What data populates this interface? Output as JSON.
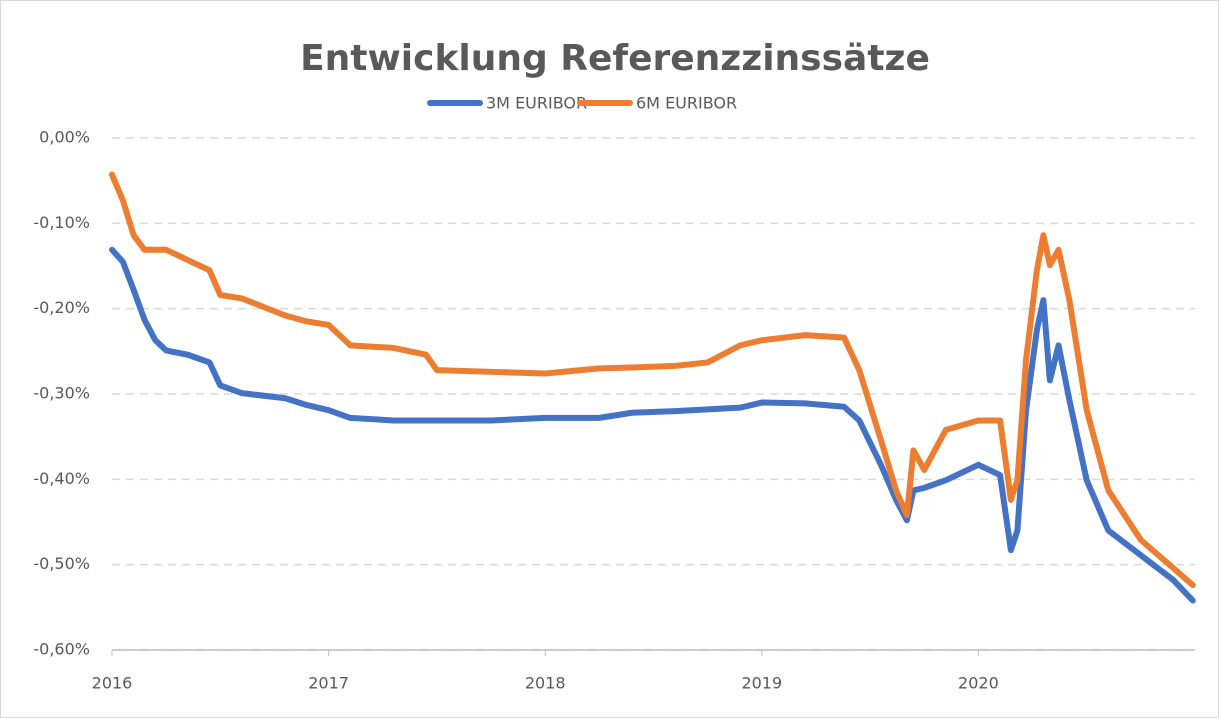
{
  "chart_data": {
    "type": "line",
    "title": "Entwicklung Referenzzinssätze",
    "x": [
      2016,
      2016.05,
      2016.1,
      2016.15,
      2016.2,
      2016.25,
      2016.35,
      2016.45,
      2016.5,
      2016.6,
      2016.8,
      2016.9,
      2017,
      2017.1,
      2017.3,
      2017.45,
      2017.5,
      2017.75,
      2018,
      2018.25,
      2018.4,
      2018.6,
      2018.75,
      2018.9,
      2019,
      2019.2,
      2019.38,
      2019.45,
      2019.55,
      2019.62,
      2019.67,
      2019.7,
      2019.75,
      2019.85,
      2020,
      2020.1,
      2020.15,
      2020.18,
      2020.22,
      2020.27,
      2020.3,
      2020.33,
      2020.37,
      2020.42,
      2020.5,
      2020.6,
      2020.75,
      2020.9,
      2020.99
    ],
    "series": [
      {
        "name": "3M EURIBOR",
        "color": "#4472c4",
        "values": [
          -0.131,
          -0.145,
          -0.178,
          -0.213,
          -0.237,
          -0.249,
          -0.254,
          -0.263,
          -0.29,
          -0.299,
          -0.305,
          -0.313,
          -0.319,
          -0.328,
          -0.331,
          -0.331,
          -0.331,
          -0.331,
          -0.328,
          -0.328,
          -0.322,
          -0.32,
          -0.318,
          -0.316,
          -0.31,
          -0.311,
          -0.315,
          -0.331,
          -0.383,
          -0.424,
          -0.448,
          -0.413,
          -0.41,
          -0.401,
          -0.383,
          -0.395,
          -0.483,
          -0.46,
          -0.319,
          -0.225,
          -0.19,
          -0.284,
          -0.243,
          -0.307,
          -0.401,
          -0.46,
          -0.489,
          -0.518,
          -0.542
        ]
      },
      {
        "name": "6M EURIBOR",
        "color": "#ed7d31",
        "values": [
          -0.043,
          -0.073,
          -0.114,
          -0.131,
          -0.131,
          -0.131,
          -0.143,
          -0.155,
          -0.184,
          -0.188,
          -0.208,
          -0.215,
          -0.219,
          -0.243,
          -0.246,
          -0.254,
          -0.272,
          -0.274,
          -0.276,
          -0.27,
          -0.269,
          -0.267,
          -0.263,
          -0.243,
          -0.237,
          -0.231,
          -0.234,
          -0.272,
          -0.354,
          -0.413,
          -0.442,
          -0.366,
          -0.389,
          -0.342,
          -0.331,
          -0.331,
          -0.424,
          -0.401,
          -0.26,
          -0.155,
          -0.114,
          -0.149,
          -0.131,
          -0.19,
          -0.319,
          -0.413,
          -0.471,
          -0.504,
          -0.524
        ]
      }
    ],
    "xlim": [
      2016,
      2021
    ],
    "xticks": [
      2016,
      2017,
      2018,
      2019,
      2020
    ],
    "ylim": [
      -0.6,
      0
    ],
    "yticks": [
      {
        "value": 0,
        "label": "0,00%"
      },
      {
        "value": -0.1,
        "label": "-0,10%"
      },
      {
        "value": -0.2,
        "label": "-0,20%"
      },
      {
        "value": -0.3,
        "label": "-0,30%"
      },
      {
        "value": -0.4,
        "label": "-0,40%"
      },
      {
        "value": -0.5,
        "label": "-0,50%"
      },
      {
        "value": -0.6,
        "label": "-0,60%"
      }
    ],
    "grid": true,
    "legend": "top"
  }
}
